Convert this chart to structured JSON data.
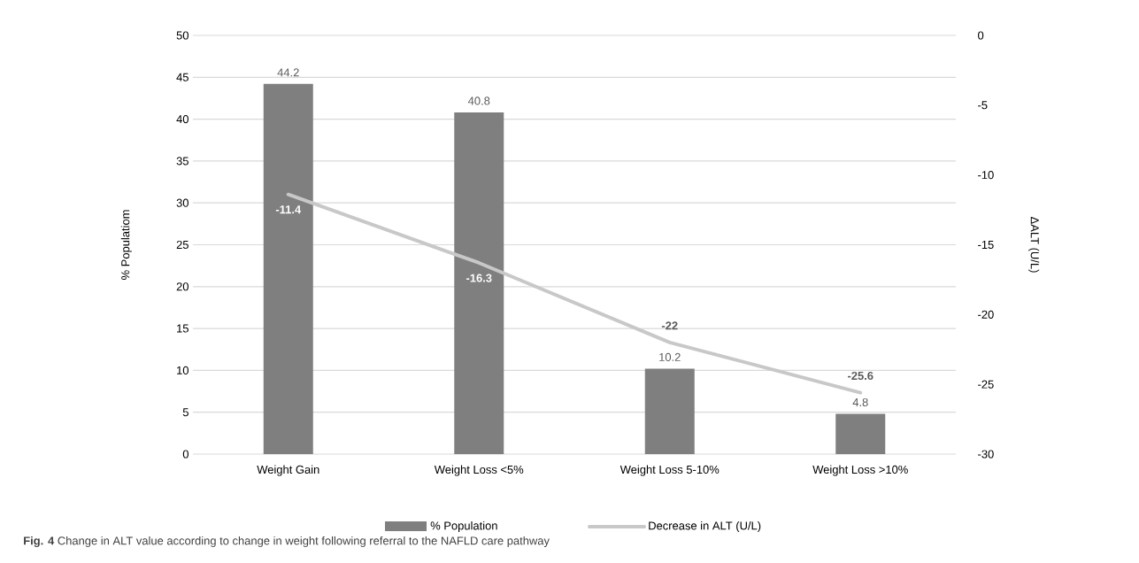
{
  "chart_data": {
    "type": "bar",
    "categories": [
      "Weight Gain",
      "Weight Loss <5%",
      "Weight Loss 5-10%",
      "Weight Loss >10%"
    ],
    "series": [
      {
        "name": "% Population",
        "color": "#7f7f7f",
        "values": [
          44.2,
          40.8,
          10.2,
          4.8
        ]
      },
      {
        "name": "Decrease in ALT (U/L)",
        "type": "line",
        "axis": "y2",
        "color": "#c8c8c8",
        "values": [
          -11.4,
          -16.3,
          -22,
          -25.6
        ]
      }
    ],
    "ylabel": "% Populatiom",
    "y2label": "ΔALT (U/L)",
    "ylim": [
      0,
      50
    ],
    "yticks": [
      0,
      5,
      10,
      15,
      20,
      25,
      30,
      35,
      40,
      45,
      50
    ],
    "y2lim": [
      -30,
      0
    ],
    "y2ticks": [
      -30,
      -25,
      -20,
      -15,
      -10,
      -5,
      0
    ],
    "grid": "y",
    "legend": "bottom",
    "data_labels": true,
    "marker": "none",
    "annotations": [
      "**Fig. 4** Change in ALT value according to change in weight following referral to the NAFLD care pathway"
    ]
  }
}
